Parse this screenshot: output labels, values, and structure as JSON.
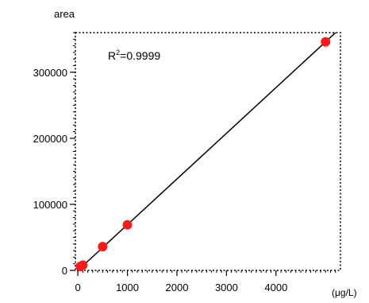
{
  "chart_data": {
    "type": "scatter",
    "ylabel": "area",
    "xlabel": "(μg/L)",
    "xlim": [
      -50,
      5300
    ],
    "ylim": [
      0,
      360000
    ],
    "x_ticks": [
      0,
      1000,
      2000,
      3000,
      4000
    ],
    "x_tick_labels": [
      "0",
      "1000",
      "2000",
      "3000",
      "4000"
    ],
    "y_ticks": [
      0,
      100000,
      200000,
      300000
    ],
    "y_tick_labels": [
      "0",
      "100000",
      "200000",
      "300000"
    ],
    "grid": false,
    "annotation": {
      "base": "R",
      "sup": "2",
      "rest": "=0.9999"
    },
    "series": [
      {
        "points": [
          {
            "x": 50,
            "y": 6000
          },
          {
            "x": 100,
            "y": 8000
          },
          {
            "x": 500,
            "y": 36000
          },
          {
            "x": 1000,
            "y": 69000
          },
          {
            "x": 5000,
            "y": 346000
          }
        ],
        "color": "#ff1a1a"
      }
    ],
    "fit_line": {
      "slope": 69.2,
      "intercept": 0,
      "color": "#000000"
    }
  }
}
